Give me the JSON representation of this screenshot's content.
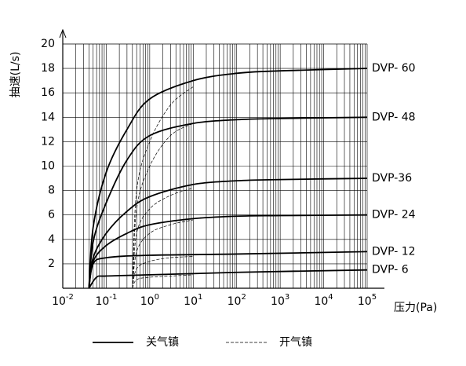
{
  "chart_data": {
    "type": "line",
    "y_label": "抽速(L/s)",
    "x_label": "压力(Pa)",
    "xscale": "log",
    "xlim": [
      0.01,
      100000
    ],
    "ylim": [
      0,
      20
    ],
    "xticks": [
      {
        "value": 0.01,
        "label": "10",
        "exponent": "-2"
      },
      {
        "value": 0.1,
        "label": "10",
        "exponent": "-1"
      },
      {
        "value": 1,
        "label": "10",
        "exponent": "0"
      },
      {
        "value": 10,
        "label": "10",
        "exponent": "1"
      },
      {
        "value": 100,
        "label": "10",
        "exponent": "2"
      },
      {
        "value": 1000,
        "label": "10",
        "exponent": "3"
      },
      {
        "value": 10000,
        "label": "10",
        "exponent": "4"
      },
      {
        "value": 100000,
        "label": "10",
        "exponent": "5"
      }
    ],
    "yticks": [
      2,
      4,
      6,
      8,
      10,
      12,
      14,
      16,
      18,
      20
    ],
    "grid": true,
    "minor_grid": true,
    "color": "#000000",
    "legend": [
      {
        "label": "关气镇",
        "style": "solid"
      },
      {
        "label": "开气镇",
        "style": "dashed"
      }
    ],
    "series": [
      {
        "name": "DVP- 60",
        "style": "solid",
        "x": [
          0.04,
          0.05,
          0.1,
          0.3,
          1,
          10,
          100,
          1000,
          100000
        ],
        "values": [
          0,
          5,
          9.5,
          13,
          15.5,
          17,
          17.6,
          17.8,
          18
        ]
      },
      {
        "name": "DVP- 48",
        "style": "solid",
        "x": [
          0.04,
          0.05,
          0.1,
          0.3,
          1,
          10,
          100,
          1000,
          100000
        ],
        "values": [
          0,
          3.8,
          7,
          10.5,
          12.5,
          13.5,
          13.8,
          13.9,
          14
        ]
      },
      {
        "name": "DVP-36",
        "style": "solid",
        "x": [
          0.04,
          0.05,
          0.1,
          0.3,
          1,
          10,
          100,
          1000,
          100000
        ],
        "values": [
          0,
          2.5,
          4.5,
          6.3,
          7.5,
          8.5,
          8.8,
          8.9,
          9
        ]
      },
      {
        "name": "DVP- 24",
        "style": "solid",
        "x": [
          0.04,
          0.05,
          0.1,
          0.3,
          1,
          10,
          100,
          1000,
          100000
        ],
        "values": [
          0,
          2.2,
          3.5,
          4.5,
          5.2,
          5.7,
          5.9,
          5.95,
          6
        ]
      },
      {
        "name": "DVP- 12",
        "style": "solid",
        "x": [
          0.04,
          0.05,
          0.1,
          1,
          100,
          100000
        ],
        "values": [
          0,
          2,
          2.5,
          2.7,
          2.8,
          3
        ]
      },
      {
        "name": "DVP- 6",
        "style": "solid",
        "x": [
          0.04,
          0.06,
          0.1,
          1,
          100,
          100000
        ],
        "values": [
          0,
          0.9,
          1,
          1.1,
          1.3,
          1.5
        ]
      },
      {
        "style": "dashed",
        "x": [
          0.4,
          0.5,
          1,
          3,
          10
        ],
        "values": [
          0,
          8,
          12,
          15,
          16.5
        ]
      },
      {
        "style": "dashed",
        "x": [
          0.4,
          0.5,
          1,
          3,
          10
        ],
        "values": [
          0,
          6.5,
          10,
          12.5,
          13.5
        ]
      },
      {
        "style": "dashed",
        "x": [
          0.4,
          0.5,
          1,
          3,
          10
        ],
        "values": [
          0,
          4.5,
          6.5,
          7.6,
          8.2
        ]
      },
      {
        "style": "dashed",
        "x": [
          0.4,
          0.5,
          1,
          3,
          10
        ],
        "values": [
          0,
          3,
          4.5,
          5.2,
          5.6
        ]
      },
      {
        "style": "dashed",
        "x": [
          0.4,
          0.5,
          1,
          3,
          10
        ],
        "values": [
          0,
          1.6,
          2.2,
          2.5,
          2.6
        ]
      },
      {
        "style": "dashed",
        "x": [
          0.4,
          0.5,
          1,
          3,
          10
        ],
        "values": [
          0,
          0.7,
          0.9,
          1,
          1.1
        ]
      }
    ]
  }
}
